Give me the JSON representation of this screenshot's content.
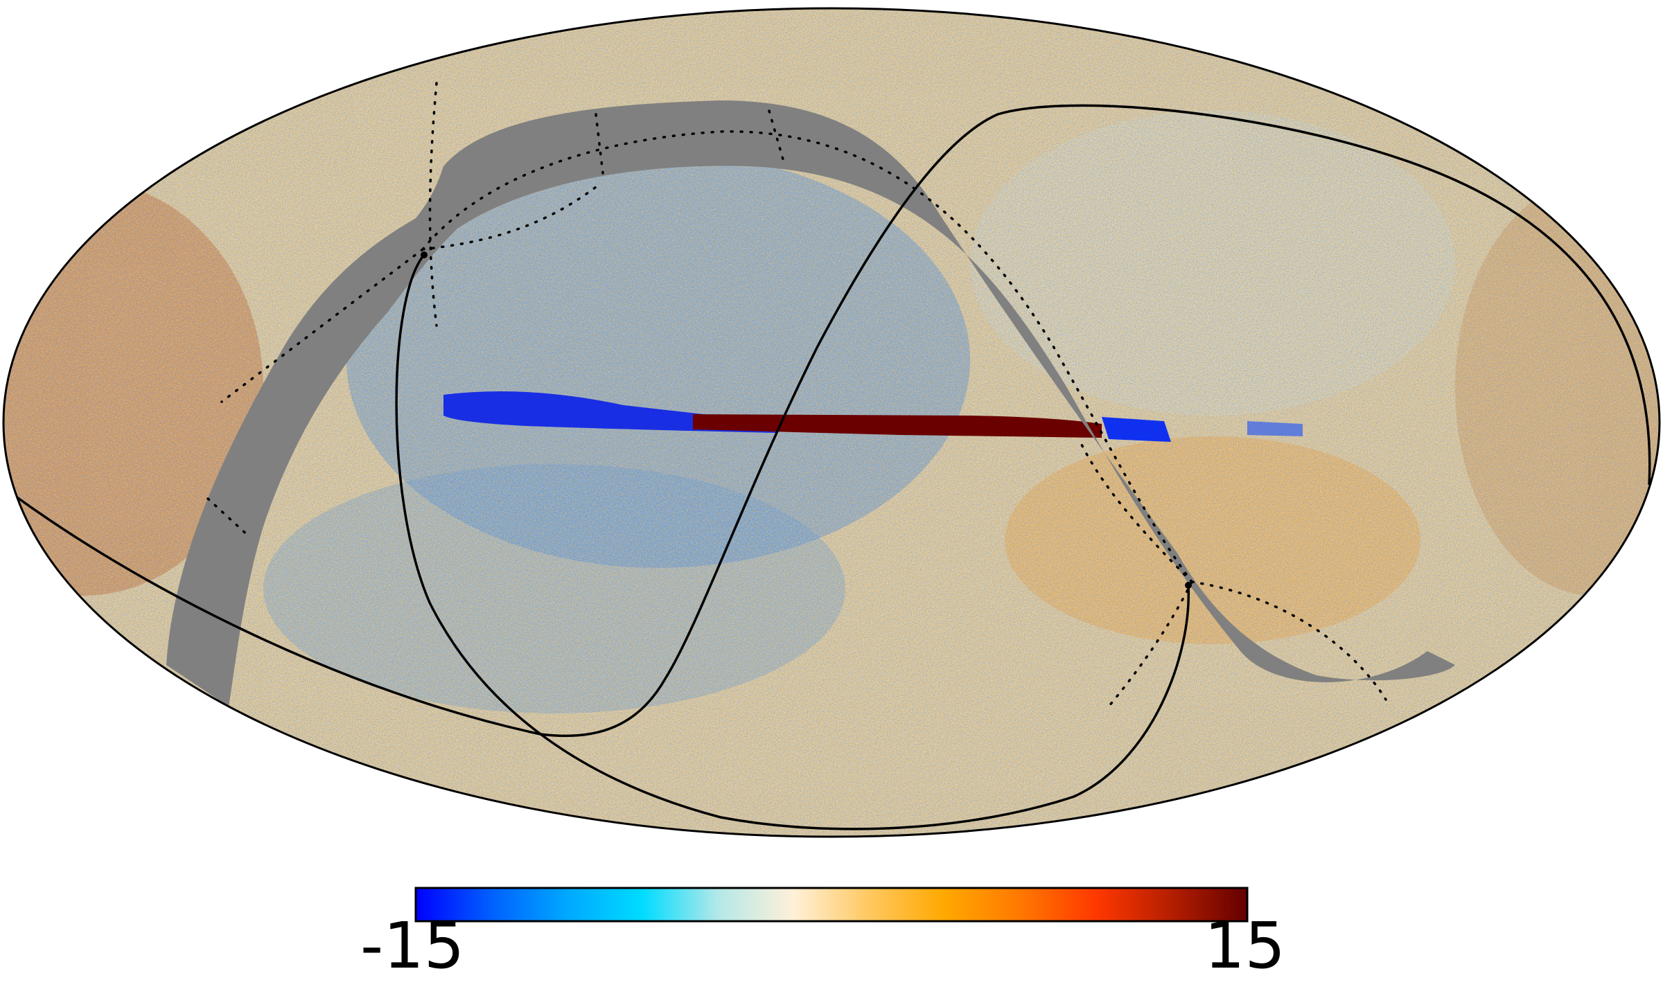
{
  "figure": {
    "projection": "mollweide",
    "colormap": "planck",
    "mask_color": "#808080",
    "colorbar": {
      "min_label": "-15",
      "max_label": "15",
      "min": -15,
      "max": 15,
      "stops": [
        "#0000ff",
        "#0060ff",
        "#00a8ff",
        "#00dcff",
        "#b4e8e8",
        "#fff0d8",
        "#ffc860",
        "#ffa800",
        "#ff7800",
        "#ff3800",
        "#b41e00",
        "#640000"
      ]
    },
    "overlays": [
      "galactic-band",
      "ecliptic-curve",
      "graticule-dots"
    ]
  }
}
